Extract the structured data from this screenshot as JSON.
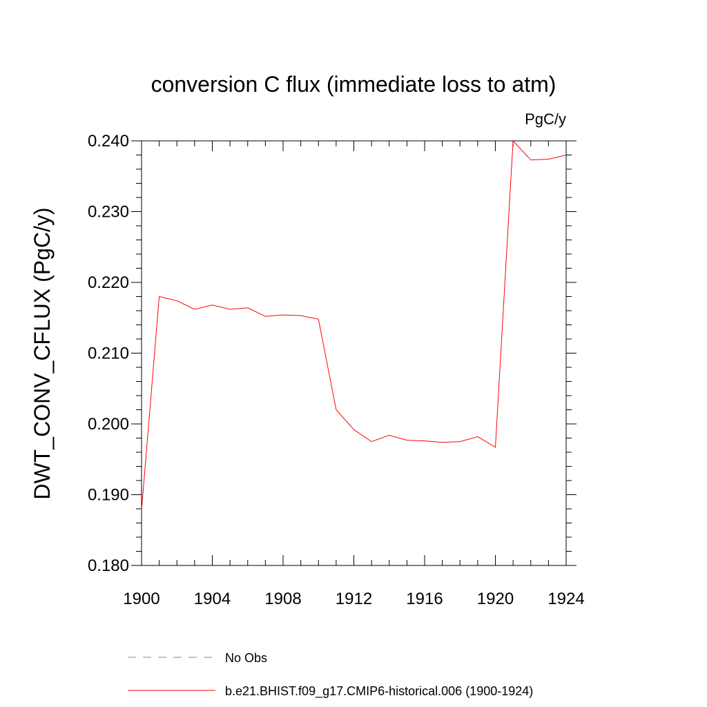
{
  "chart_data": {
    "type": "line",
    "title": "conversion C flux (immediate loss to atm)",
    "units": "PgC/y",
    "ylabel": "DWT_CONV_CFLUX  (PgC/y)",
    "xlabel": "",
    "xlim": [
      1900,
      1924
    ],
    "ylim": [
      0.18,
      0.24
    ],
    "x_ticks": [
      1900,
      1904,
      1908,
      1912,
      1916,
      1920,
      1924
    ],
    "x_tick_labels": [
      "1900",
      "1904",
      "1908",
      "1912",
      "1916",
      "1920",
      "1924"
    ],
    "y_ticks": [
      0.18,
      0.19,
      0.2,
      0.21,
      0.22,
      0.23,
      0.24
    ],
    "y_tick_labels": [
      "0.180",
      "0.190",
      "0.200",
      "0.210",
      "0.220",
      "0.230",
      "0.240"
    ],
    "grid": false,
    "legend_position": "bottom",
    "series": [
      {
        "name": "No Obs",
        "color": "#8080c0",
        "dashed": true,
        "x": [],
        "values": []
      },
      {
        "name": "b.e21.BHIST.f09_g17.CMIP6-historical.006 (1900-1924)",
        "color": "#ff0000",
        "dashed": false,
        "x": [
          1900,
          1901,
          1902,
          1903,
          1904,
          1905,
          1906,
          1907,
          1908,
          1909,
          1910,
          1911,
          1912,
          1913,
          1914,
          1915,
          1916,
          1917,
          1918,
          1919,
          1920,
          1921,
          1922,
          1923,
          1924
        ],
        "values": [
          0.1878,
          0.218,
          0.2174,
          0.2162,
          0.2168,
          0.2162,
          0.2164,
          0.2152,
          0.2154,
          0.2153,
          0.2148,
          0.202,
          0.1992,
          0.1975,
          0.1984,
          0.1977,
          0.1976,
          0.1974,
          0.1975,
          0.1982,
          0.1967,
          0.24,
          0.2373,
          0.2374,
          0.238
        ]
      }
    ]
  }
}
